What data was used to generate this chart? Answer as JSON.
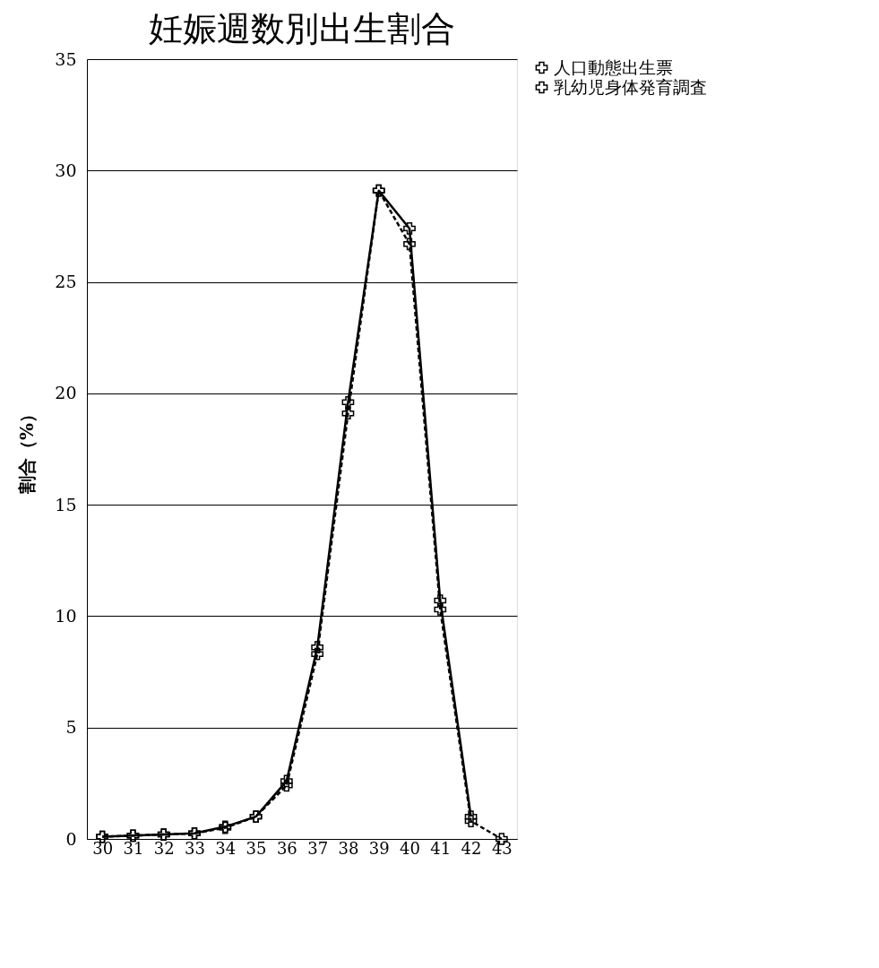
{
  "chart_data": {
    "type": "line",
    "title": "妊娠週数別出生割合",
    "ylabel": "割合（%）",
    "categories": [
      "30",
      "31",
      "32",
      "33",
      "34",
      "35",
      "36",
      "37",
      "38",
      "39",
      "40",
      "41",
      "42",
      "43"
    ],
    "series": [
      {
        "name": "人口動態出生票",
        "color": "#000000",
        "line_style": "dashed",
        "marker": "cross",
        "values": [
          0.1,
          0.15,
          0.2,
          0.25,
          0.5,
          1.0,
          2.4,
          8.3,
          19.1,
          29.1,
          26.7,
          10.3,
          0.8,
          0.0
        ]
      },
      {
        "name": "乳幼児身体発育調査",
        "color": "#000000",
        "line_style": "solid",
        "marker": "cross",
        "values": [
          0.1,
          0.15,
          0.2,
          0.25,
          0.55,
          1.0,
          2.6,
          8.6,
          19.6,
          29.1,
          27.4,
          10.7,
          1.0,
          null
        ]
      }
    ],
    "ylim": [
      0,
      35
    ],
    "yticks": [
      0,
      5,
      10,
      15,
      20,
      25,
      30,
      35
    ],
    "grid": "y",
    "legend": "right"
  }
}
